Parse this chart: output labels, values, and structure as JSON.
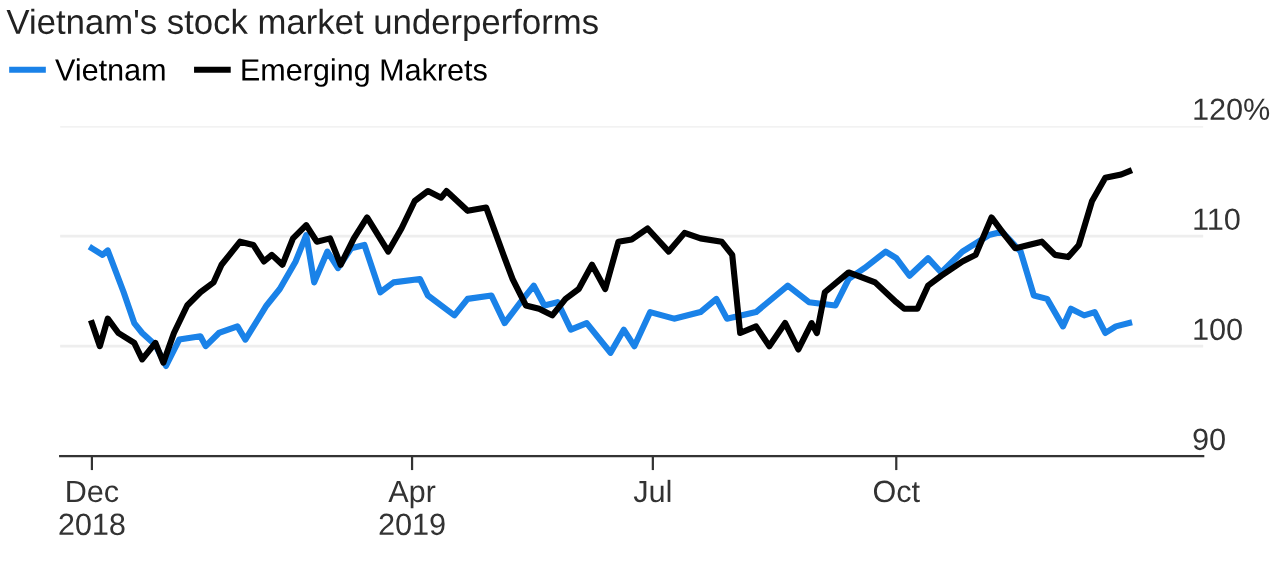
{
  "chart_data": {
    "type": "line",
    "title": "Vietnam's stock market underperforms",
    "xlim": [
      "2018-11-19",
      "2020-01-25"
    ],
    "xticks": [
      {
        "value": "2018-12-01",
        "label": "Dec\n2018"
      },
      {
        "value": "2019-04-01",
        "label": "Apr\n2019"
      },
      {
        "value": "2019-07-01",
        "label": "Jul"
      },
      {
        "value": "2019-10-01",
        "label": "Oct"
      }
    ],
    "ylim": [
      90,
      120
    ],
    "yticks": [
      {
        "value": 120,
        "label": "120%"
      },
      110,
      100,
      90
    ],
    "grid": "y",
    "legend": "top left",
    "series": [
      {
        "name": "Vietnam",
        "color": "#1a82e8",
        "x": [
          "2018-12-01",
          "2018-12-05",
          "2018-12-07",
          "2018-12-13",
          "2018-12-17",
          "2018-12-20",
          "2018-12-25",
          "2018-12-29",
          "2019-01-03",
          "2019-01-11",
          "2019-01-13",
          "2019-01-18",
          "2019-01-25",
          "2019-01-28",
          "2019-02-05",
          "2019-02-10",
          "2019-02-16",
          "2019-02-20",
          "2019-02-23",
          "2019-02-28",
          "2019-03-04",
          "2019-03-09",
          "2019-03-14",
          "2019-03-20",
          "2019-03-25",
          "2019-04-04",
          "2019-04-07",
          "2019-04-17",
          "2019-04-22",
          "2019-05-01",
          "2019-05-06",
          "2019-05-12",
          "2019-05-17",
          "2019-05-21",
          "2019-05-26",
          "2019-05-31",
          "2019-06-06",
          "2019-06-15",
          "2019-06-20",
          "2019-06-24",
          "2019-06-30",
          "2019-07-09",
          "2019-07-19",
          "2019-07-25",
          "2019-07-29",
          "2019-08-09",
          "2019-08-21",
          "2019-08-29",
          "2019-09-08",
          "2019-09-13",
          "2019-09-19",
          "2019-09-27",
          "2019-10-01",
          "2019-10-06",
          "2019-10-13",
          "2019-10-18",
          "2019-10-26",
          "2019-11-05",
          "2019-11-10",
          "2019-11-17",
          "2019-11-22",
          "2019-11-27",
          "2019-12-03",
          "2019-12-06",
          "2019-12-11",
          "2019-12-15",
          "2019-12-19",
          "2019-12-23",
          "2019-12-28"
        ],
        "values": [
          108.9,
          108.3,
          108.7,
          104.9,
          102.1,
          101.2,
          100.1,
          98.2,
          100.6,
          100.9,
          100.0,
          101.2,
          101.8,
          100.6,
          103.7,
          105.2,
          107.7,
          110.1,
          105.8,
          108.6,
          107.1,
          108.9,
          109.2,
          104.9,
          105.8,
          106.1,
          104.6,
          102.8,
          104.3,
          104.6,
          102.1,
          104.0,
          105.5,
          103.7,
          104.0,
          101.5,
          102.1,
          99.4,
          101.5,
          100.0,
          103.1,
          102.5,
          103.1,
          104.3,
          102.5,
          103.1,
          105.5,
          104.0,
          103.7,
          106.1,
          107.1,
          108.6,
          108.0,
          106.4,
          108.0,
          106.7,
          108.6,
          110.1,
          110.4,
          108.6,
          104.6,
          104.3,
          101.8,
          103.4,
          102.8,
          103.1,
          101.2,
          101.8,
          102.1
        ]
      },
      {
        "name": "Emerging Makrets",
        "color": "#000000",
        "x": [
          "2018-12-01",
          "2018-12-04",
          "2018-12-07",
          "2018-12-11",
          "2018-12-17",
          "2018-12-20",
          "2018-12-25",
          "2018-12-28",
          "2019-01-01",
          "2019-01-06",
          "2019-01-11",
          "2019-01-16",
          "2019-01-19",
          "2019-01-26",
          "2019-01-31",
          "2019-02-04",
          "2019-02-07",
          "2019-02-11",
          "2019-02-15",
          "2019-02-20",
          "2019-02-24",
          "2019-03-01",
          "2019-03-05",
          "2019-03-10",
          "2019-03-15",
          "2019-03-23",
          "2019-03-28",
          "2019-04-02",
          "2019-04-07",
          "2019-04-12",
          "2019-04-14",
          "2019-04-22",
          "2019-04-29",
          "2019-05-06",
          "2019-05-09",
          "2019-05-14",
          "2019-05-19",
          "2019-05-24",
          "2019-05-29",
          "2019-06-03",
          "2019-06-08",
          "2019-06-13",
          "2019-06-18",
          "2019-06-23",
          "2019-06-29",
          "2019-07-07",
          "2019-07-13",
          "2019-07-19",
          "2019-07-27",
          "2019-07-31",
          "2019-08-03",
          "2019-08-09",
          "2019-08-14",
          "2019-08-20",
          "2019-08-25",
          "2019-08-30",
          "2019-09-01",
          "2019-09-04",
          "2019-09-13",
          "2019-09-23",
          "2019-10-01",
          "2019-10-04",
          "2019-10-09",
          "2019-10-13",
          "2019-10-18",
          "2019-10-26",
          "2019-10-31",
          "2019-11-06",
          "2019-11-11",
          "2019-11-15",
          "2019-11-20",
          "2019-11-25",
          "2019-11-30",
          "2019-12-05",
          "2019-12-09",
          "2019-12-14",
          "2019-12-19",
          "2019-12-25",
          "2019-12-28"
        ],
        "values": [
          102.1,
          100.0,
          102.5,
          101.2,
          100.3,
          98.8,
          100.3,
          98.5,
          101.2,
          103.7,
          104.9,
          105.8,
          107.4,
          109.5,
          109.2,
          107.7,
          108.3,
          107.4,
          109.8,
          111.0,
          109.5,
          109.8,
          107.4,
          109.8,
          111.7,
          108.6,
          110.7,
          113.2,
          114.1,
          113.5,
          114.1,
          112.3,
          112.6,
          108.0,
          106.1,
          103.7,
          103.4,
          102.8,
          104.3,
          105.2,
          107.4,
          105.2,
          109.5,
          109.7,
          110.7,
          108.6,
          110.3,
          109.8,
          109.5,
          108.3,
          101.2,
          101.8,
          100.0,
          102.1,
          99.7,
          102.1,
          101.2,
          104.9,
          106.7,
          105.8,
          104.0,
          103.4,
          103.4,
          105.5,
          106.4,
          107.7,
          108.3,
          111.7,
          110.1,
          108.9,
          109.2,
          109.5,
          108.3,
          108.1,
          109.2,
          113.2,
          115.3,
          115.6,
          115.9
        ]
      }
    ]
  }
}
